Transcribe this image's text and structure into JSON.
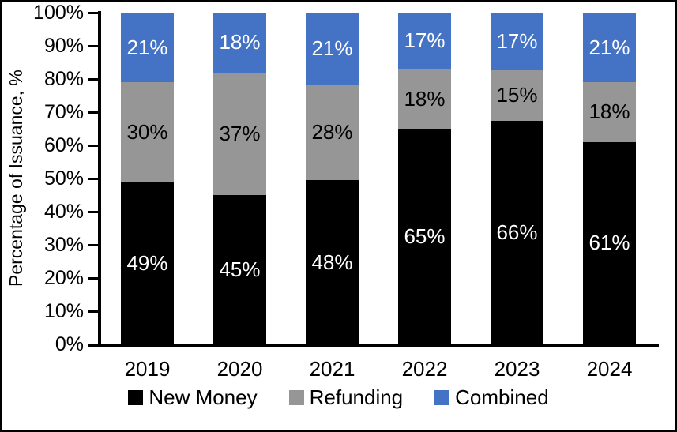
{
  "frame": {
    "background": "#ffffff",
    "border_color": "#000000"
  },
  "chart_data": {
    "type": "bar",
    "stacked": true,
    "normalized_to_100": true,
    "title": "",
    "xlabel": "",
    "ylabel": "Percentage of Issuance, %",
    "categories": [
      "2019",
      "2020",
      "2021",
      "2022",
      "2023",
      "2024"
    ],
    "series": [
      {
        "name": "New Money",
        "color": "#000000",
        "label_color": "#ffffff",
        "values": [
          49,
          45,
          48,
          65,
          66,
          61
        ]
      },
      {
        "name": "Refunding",
        "color": "#969696",
        "label_color": "#000000",
        "values": [
          30,
          37,
          28,
          18,
          15,
          18
        ]
      },
      {
        "name": "Combined",
        "color": "#4472C4",
        "label_color": "#ffffff",
        "values": [
          21,
          18,
          21,
          17,
          17,
          21
        ]
      }
    ],
    "value_suffix": "%",
    "yticks": [
      "0%",
      "10%",
      "20%",
      "30%",
      "40%",
      "50%",
      "60%",
      "70%",
      "80%",
      "90%",
      "100%"
    ],
    "ylim": [
      0,
      100
    ],
    "grid": false,
    "legend_position": "bottom"
  }
}
